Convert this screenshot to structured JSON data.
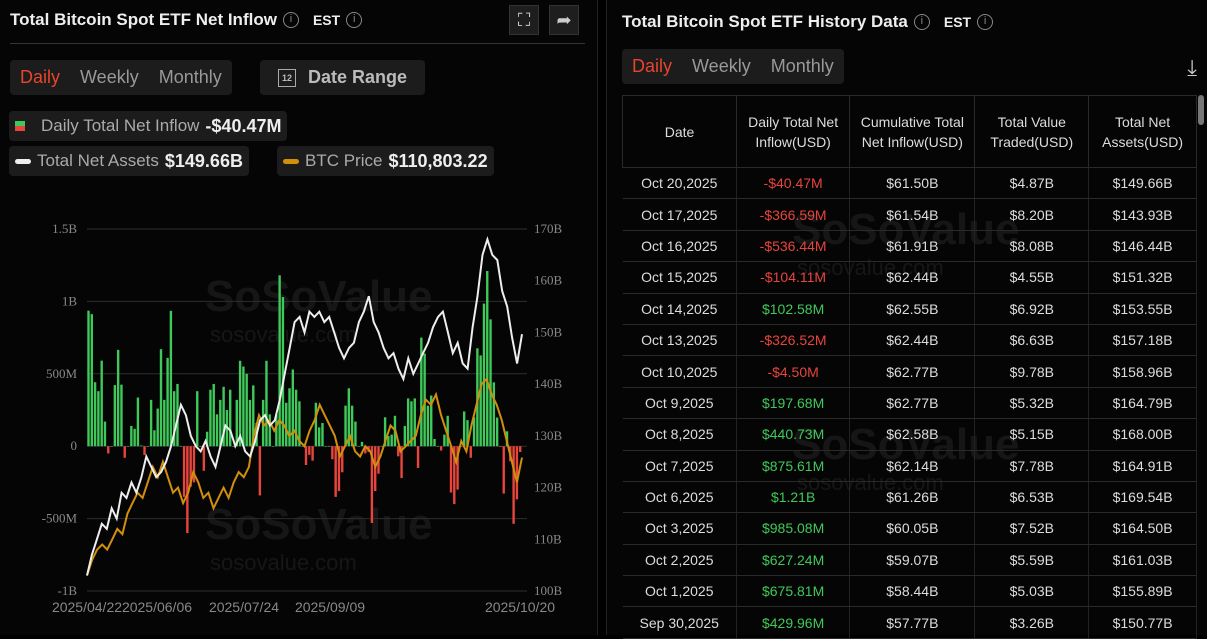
{
  "left": {
    "title": "Total Bitcoin Spot ETF Net Inflow",
    "tz": "EST",
    "tabs": [
      "Daily",
      "Weekly",
      "Monthly"
    ],
    "date_range": "Date Range",
    "legend": {
      "inflow_label": "Daily Total Net Inflow",
      "inflow_value": "-$40.47M",
      "assets_label": "Total Net Assets",
      "assets_value": "$149.66B",
      "btc_label": "BTC Price",
      "btc_value": "$110,803.22"
    }
  },
  "watermark": {
    "brand": "SoSoValue",
    "url": "sosovalue.com"
  },
  "chart_data": {
    "type": "bar",
    "title": "Total Bitcoin Spot ETF Net Inflow",
    "left_ticks": [
      "1.5B",
      "1B",
      "500M",
      "0",
      "-500M",
      "-1B"
    ],
    "ylim": [
      -1000,
      1500
    ],
    "right_ticks": [
      "170B",
      "160B",
      "150B",
      "140B",
      "130B",
      "120B",
      "110B",
      "100B"
    ],
    "y2lim": [
      100,
      170
    ],
    "x_ticks": [
      "2025/04/22",
      "2025/06/06",
      "2025/07/24",
      "2025/09/09",
      "2025/10/20"
    ],
    "colors": {
      "positive": "#3fc95a",
      "negative": "#e8453c",
      "assets": "#eeeeee",
      "btc": "#d18f0c"
    },
    "inflow_musd": [
      936,
      912,
      442,
      380,
      591,
      170,
      -50,
      0,
      422,
      665,
      425,
      -80,
      0,
      140,
      120,
      336,
      5,
      -60,
      0,
      320,
      110,
      260,
      670,
      320,
      610,
      935,
      380,
      430,
      0,
      -350,
      -600,
      -280,
      -250,
      380,
      0,
      -170,
      100,
      390,
      430,
      220,
      320,
      410,
      250,
      390,
      0,
      320,
      590,
      550,
      500,
      320,
      420,
      160,
      -340,
      320,
      590,
      220,
      0,
      220,
      1180,
      1030,
      300,
      400,
      530,
      390,
      310,
      0,
      -130,
      -60,
      -100,
      300,
      130,
      160,
      0,
      0,
      -90,
      -350,
      -310,
      -180,
      280,
      400,
      280,
      170,
      0,
      30,
      -50,
      -40,
      -530,
      -310,
      -190,
      0,
      200,
      70,
      80,
      210,
      -70,
      -220,
      140,
      330,
      310,
      330,
      -150,
      750,
      640,
      280,
      350,
      50,
      0,
      -30,
      80,
      210,
      -320,
      -400,
      -300,
      0,
      240,
      180,
      -80,
      200,
      676,
      627,
      985,
      1210,
      876,
      441,
      198,
      -4.5,
      -327,
      103,
      -104,
      -536,
      -367,
      -40
    ],
    "total_net_assets_b": [
      103,
      107,
      110,
      113,
      112,
      116,
      114,
      119,
      118,
      121,
      119,
      122,
      126,
      124,
      122,
      123,
      125,
      128,
      132,
      136,
      134,
      130,
      128,
      127,
      129,
      126,
      124,
      128,
      132,
      131,
      128,
      130,
      127,
      126,
      129,
      133,
      134,
      132,
      133,
      137,
      142,
      147,
      152,
      153,
      150,
      154,
      153,
      154,
      152,
      153,
      150,
      147,
      145,
      147,
      148,
      152,
      154,
      157,
      152,
      150,
      147,
      145,
      146,
      143,
      141,
      145,
      142,
      144,
      146,
      148,
      151,
      153,
      154,
      150,
      146,
      148,
      144,
      143,
      151,
      157,
      165,
      168,
      165,
      164,
      158,
      155,
      149,
      144,
      149.66
    ],
    "btc_price_k": [
      88,
      91,
      93,
      94,
      93,
      95,
      97,
      96,
      100,
      102,
      104,
      103,
      106,
      109,
      107,
      110,
      107,
      104,
      105,
      102,
      104,
      108,
      106,
      103,
      104,
      101,
      103,
      105,
      103,
      106,
      108,
      107,
      109,
      115,
      119,
      117,
      118,
      116,
      118,
      117,
      115,
      116,
      114,
      113,
      116,
      118,
      121,
      119,
      117,
      115,
      111,
      113,
      115,
      112,
      111,
      113,
      112,
      109,
      111,
      114,
      117,
      116,
      112,
      113,
      114,
      115,
      119,
      122,
      121,
      123,
      119,
      116,
      113,
      110,
      114,
      112,
      117,
      121,
      125,
      126,
      123,
      121,
      118,
      114,
      110,
      106,
      110.8
    ],
    "btc_scale_k": [
      85,
      155
    ]
  },
  "right": {
    "title": "Total Bitcoin Spot ETF History Data",
    "tz": "EST",
    "tabs": [
      "Daily",
      "Weekly",
      "Monthly"
    ],
    "columns": [
      "Date",
      "Daily Total Net Inflow(USD)",
      "Cumulative Total Net Inflow(USD)",
      "Total Value Traded(USD)",
      "Total Net Assets(USD)"
    ],
    "rows": [
      [
        "Oct 20,2025",
        "-$40.47M",
        "$61.50B",
        "$4.87B",
        "$149.66B"
      ],
      [
        "Oct 17,2025",
        "-$366.59M",
        "$61.54B",
        "$8.20B",
        "$143.93B"
      ],
      [
        "Oct 16,2025",
        "-$536.44M",
        "$61.91B",
        "$8.08B",
        "$146.44B"
      ],
      [
        "Oct 15,2025",
        "-$104.11M",
        "$62.44B",
        "$4.55B",
        "$151.32B"
      ],
      [
        "Oct 14,2025",
        "$102.58M",
        "$62.55B",
        "$6.92B",
        "$153.55B"
      ],
      [
        "Oct 13,2025",
        "-$326.52M",
        "$62.44B",
        "$6.63B",
        "$157.18B"
      ],
      [
        "Oct 10,2025",
        "-$4.50M",
        "$62.77B",
        "$9.78B",
        "$158.96B"
      ],
      [
        "Oct 9,2025",
        "$197.68M",
        "$62.77B",
        "$5.32B",
        "$164.79B"
      ],
      [
        "Oct 8,2025",
        "$440.73M",
        "$62.58B",
        "$5.15B",
        "$168.00B"
      ],
      [
        "Oct 7,2025",
        "$875.61M",
        "$62.14B",
        "$7.78B",
        "$164.91B"
      ],
      [
        "Oct 6,2025",
        "$1.21B",
        "$61.26B",
        "$6.53B",
        "$169.54B"
      ],
      [
        "Oct 3,2025",
        "$985.08M",
        "$60.05B",
        "$7.52B",
        "$164.50B"
      ],
      [
        "Oct 2,2025",
        "$627.24M",
        "$59.07B",
        "$5.59B",
        "$161.03B"
      ],
      [
        "Oct 1,2025",
        "$675.81M",
        "$58.44B",
        "$5.03B",
        "$155.89B"
      ],
      [
        "Sep 30,2025",
        "$429.96M",
        "$57.77B",
        "$3.26B",
        "$150.77B"
      ]
    ]
  }
}
